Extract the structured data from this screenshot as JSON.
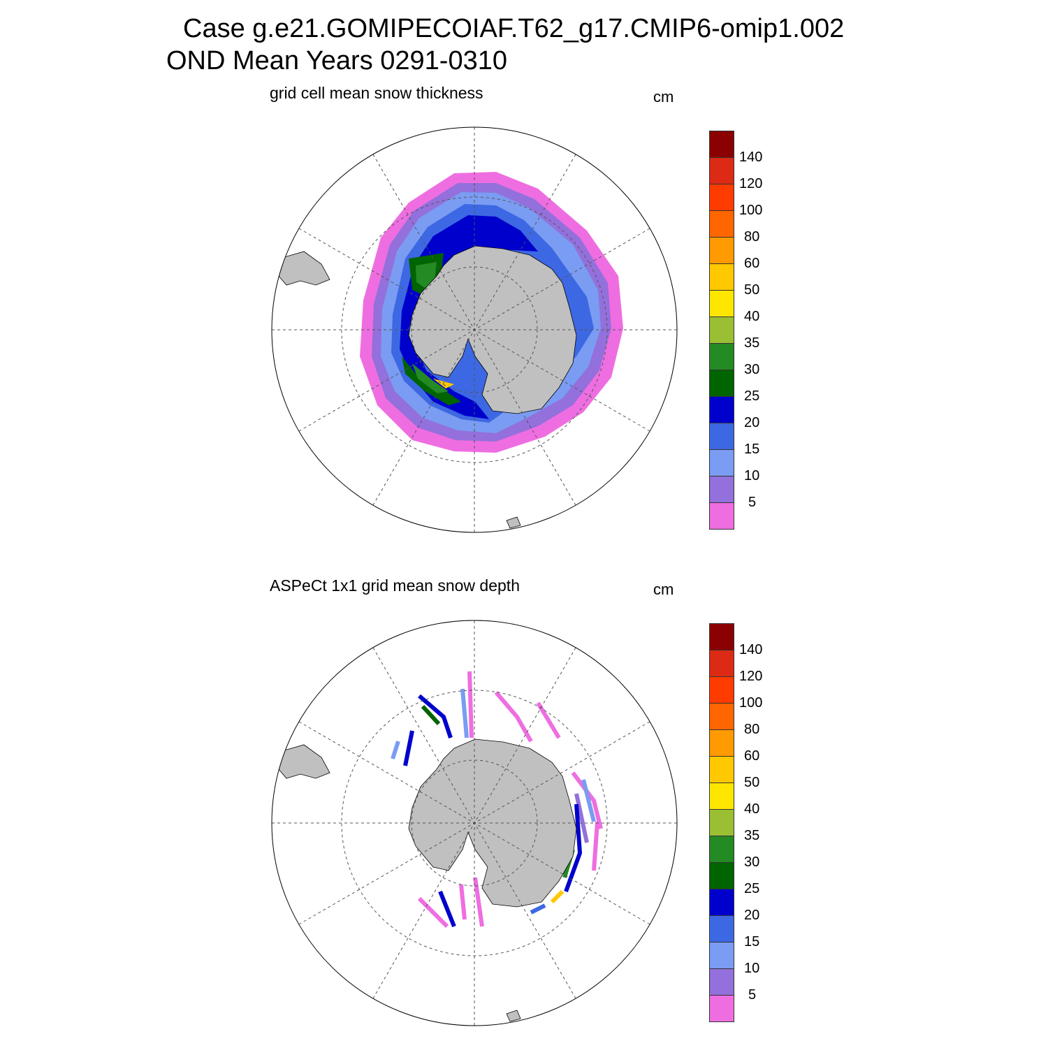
{
  "title": {
    "line1": "Case g.e21.GOMIPECOIAF.T62_g17.CMIP6-omip1.002",
    "line2": "OND Mean   Years 0291-0310"
  },
  "panels": [
    {
      "subtitle": "grid cell mean snow thickness",
      "units": "cm"
    },
    {
      "subtitle": "ASPeCt 1x1 grid mean snow depth",
      "units": "cm"
    }
  ],
  "colorbar": {
    "labels": [
      "140",
      "120",
      "100",
      "80",
      "60",
      "50",
      "40",
      "35",
      "30",
      "25",
      "20",
      "15",
      "10",
      "5"
    ],
    "colors": [
      "#8b0000",
      "#dd2a14",
      "#ff3c00",
      "#ff6600",
      "#ff9a00",
      "#ffc800",
      "#ffe600",
      "#9bbf32",
      "#248a24",
      "#006400",
      "#0000cd",
      "#3d68e3",
      "#7a9cf2",
      "#9370db",
      "#ee6ee1"
    ]
  },
  "colors": {
    "land": "#c0c0c0",
    "grid": "#555555"
  }
}
